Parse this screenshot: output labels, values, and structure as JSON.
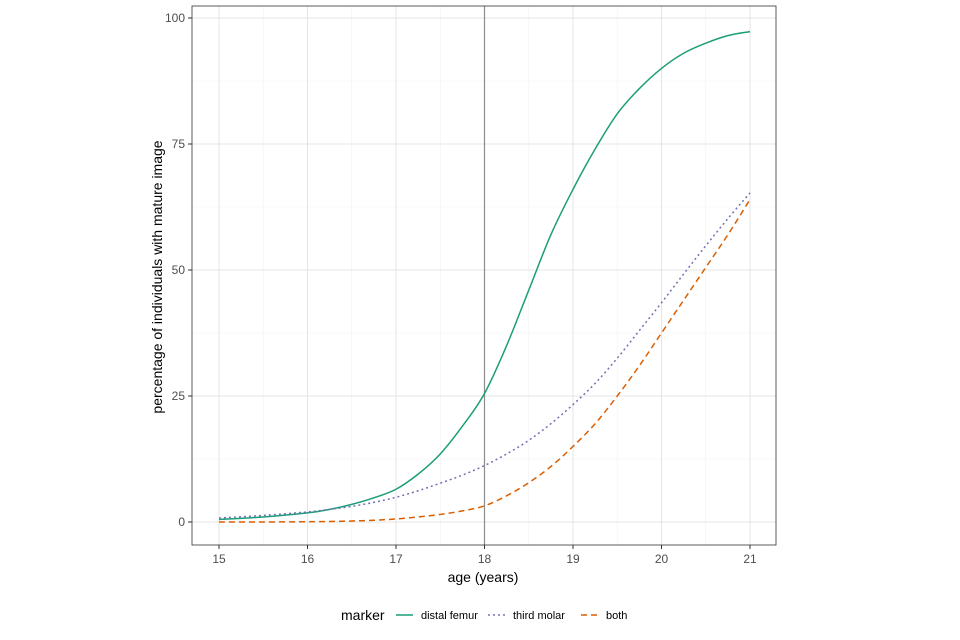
{
  "chart_data": {
    "type": "line",
    "title": "",
    "xlabel": "age (years)",
    "ylabel": "percentage of individuals with mature image",
    "xlim": [
      15,
      21
    ],
    "ylim": [
      0,
      100
    ],
    "x_ticks": [
      15,
      16,
      17,
      18,
      19,
      20,
      21
    ],
    "y_ticks": [
      0,
      25,
      50,
      75,
      100
    ],
    "grid": true,
    "reference_line_x": 18,
    "legend": {
      "title": "marker",
      "position": "bottom"
    },
    "x": [
      15,
      15.5,
      16,
      16.25,
      16.5,
      16.75,
      17,
      17.25,
      17.5,
      17.75,
      18,
      18.25,
      18.5,
      18.75,
      19,
      19.25,
      19.5,
      19.75,
      20,
      20.25,
      20.5,
      20.75,
      21
    ],
    "series": [
      {
        "name": "distal femur",
        "color": "#1b9e77",
        "dash": "solid",
        "values": [
          0.5,
          1.0,
          1.8,
          2.5,
          3.5,
          4.8,
          6.5,
          9.5,
          13.5,
          19,
          25.5,
          35,
          46,
          57,
          66,
          74,
          81,
          86,
          90,
          93,
          95,
          96.5,
          97.3
        ]
      },
      {
        "name": "third molar",
        "color": "#7570b3",
        "dash": "dotted",
        "values": [
          0.8,
          1.3,
          2.0,
          2.5,
          3.1,
          3.9,
          4.9,
          6.2,
          7.7,
          9.3,
          11.2,
          13.5,
          16.2,
          19.5,
          23.3,
          27.5,
          32.5,
          38.0,
          43.5,
          49.2,
          54.8,
          60.2,
          65.3
        ]
      },
      {
        "name": "both",
        "color": "#d95f02",
        "dash": "dashed",
        "values": [
          0,
          0,
          0.05,
          0.1,
          0.2,
          0.35,
          0.6,
          1.0,
          1.5,
          2.2,
          3.2,
          5.2,
          7.8,
          11.0,
          15.0,
          19.5,
          25.0,
          31.0,
          37.5,
          44.0,
          50.5,
          57.0,
          64.0
        ]
      }
    ]
  }
}
